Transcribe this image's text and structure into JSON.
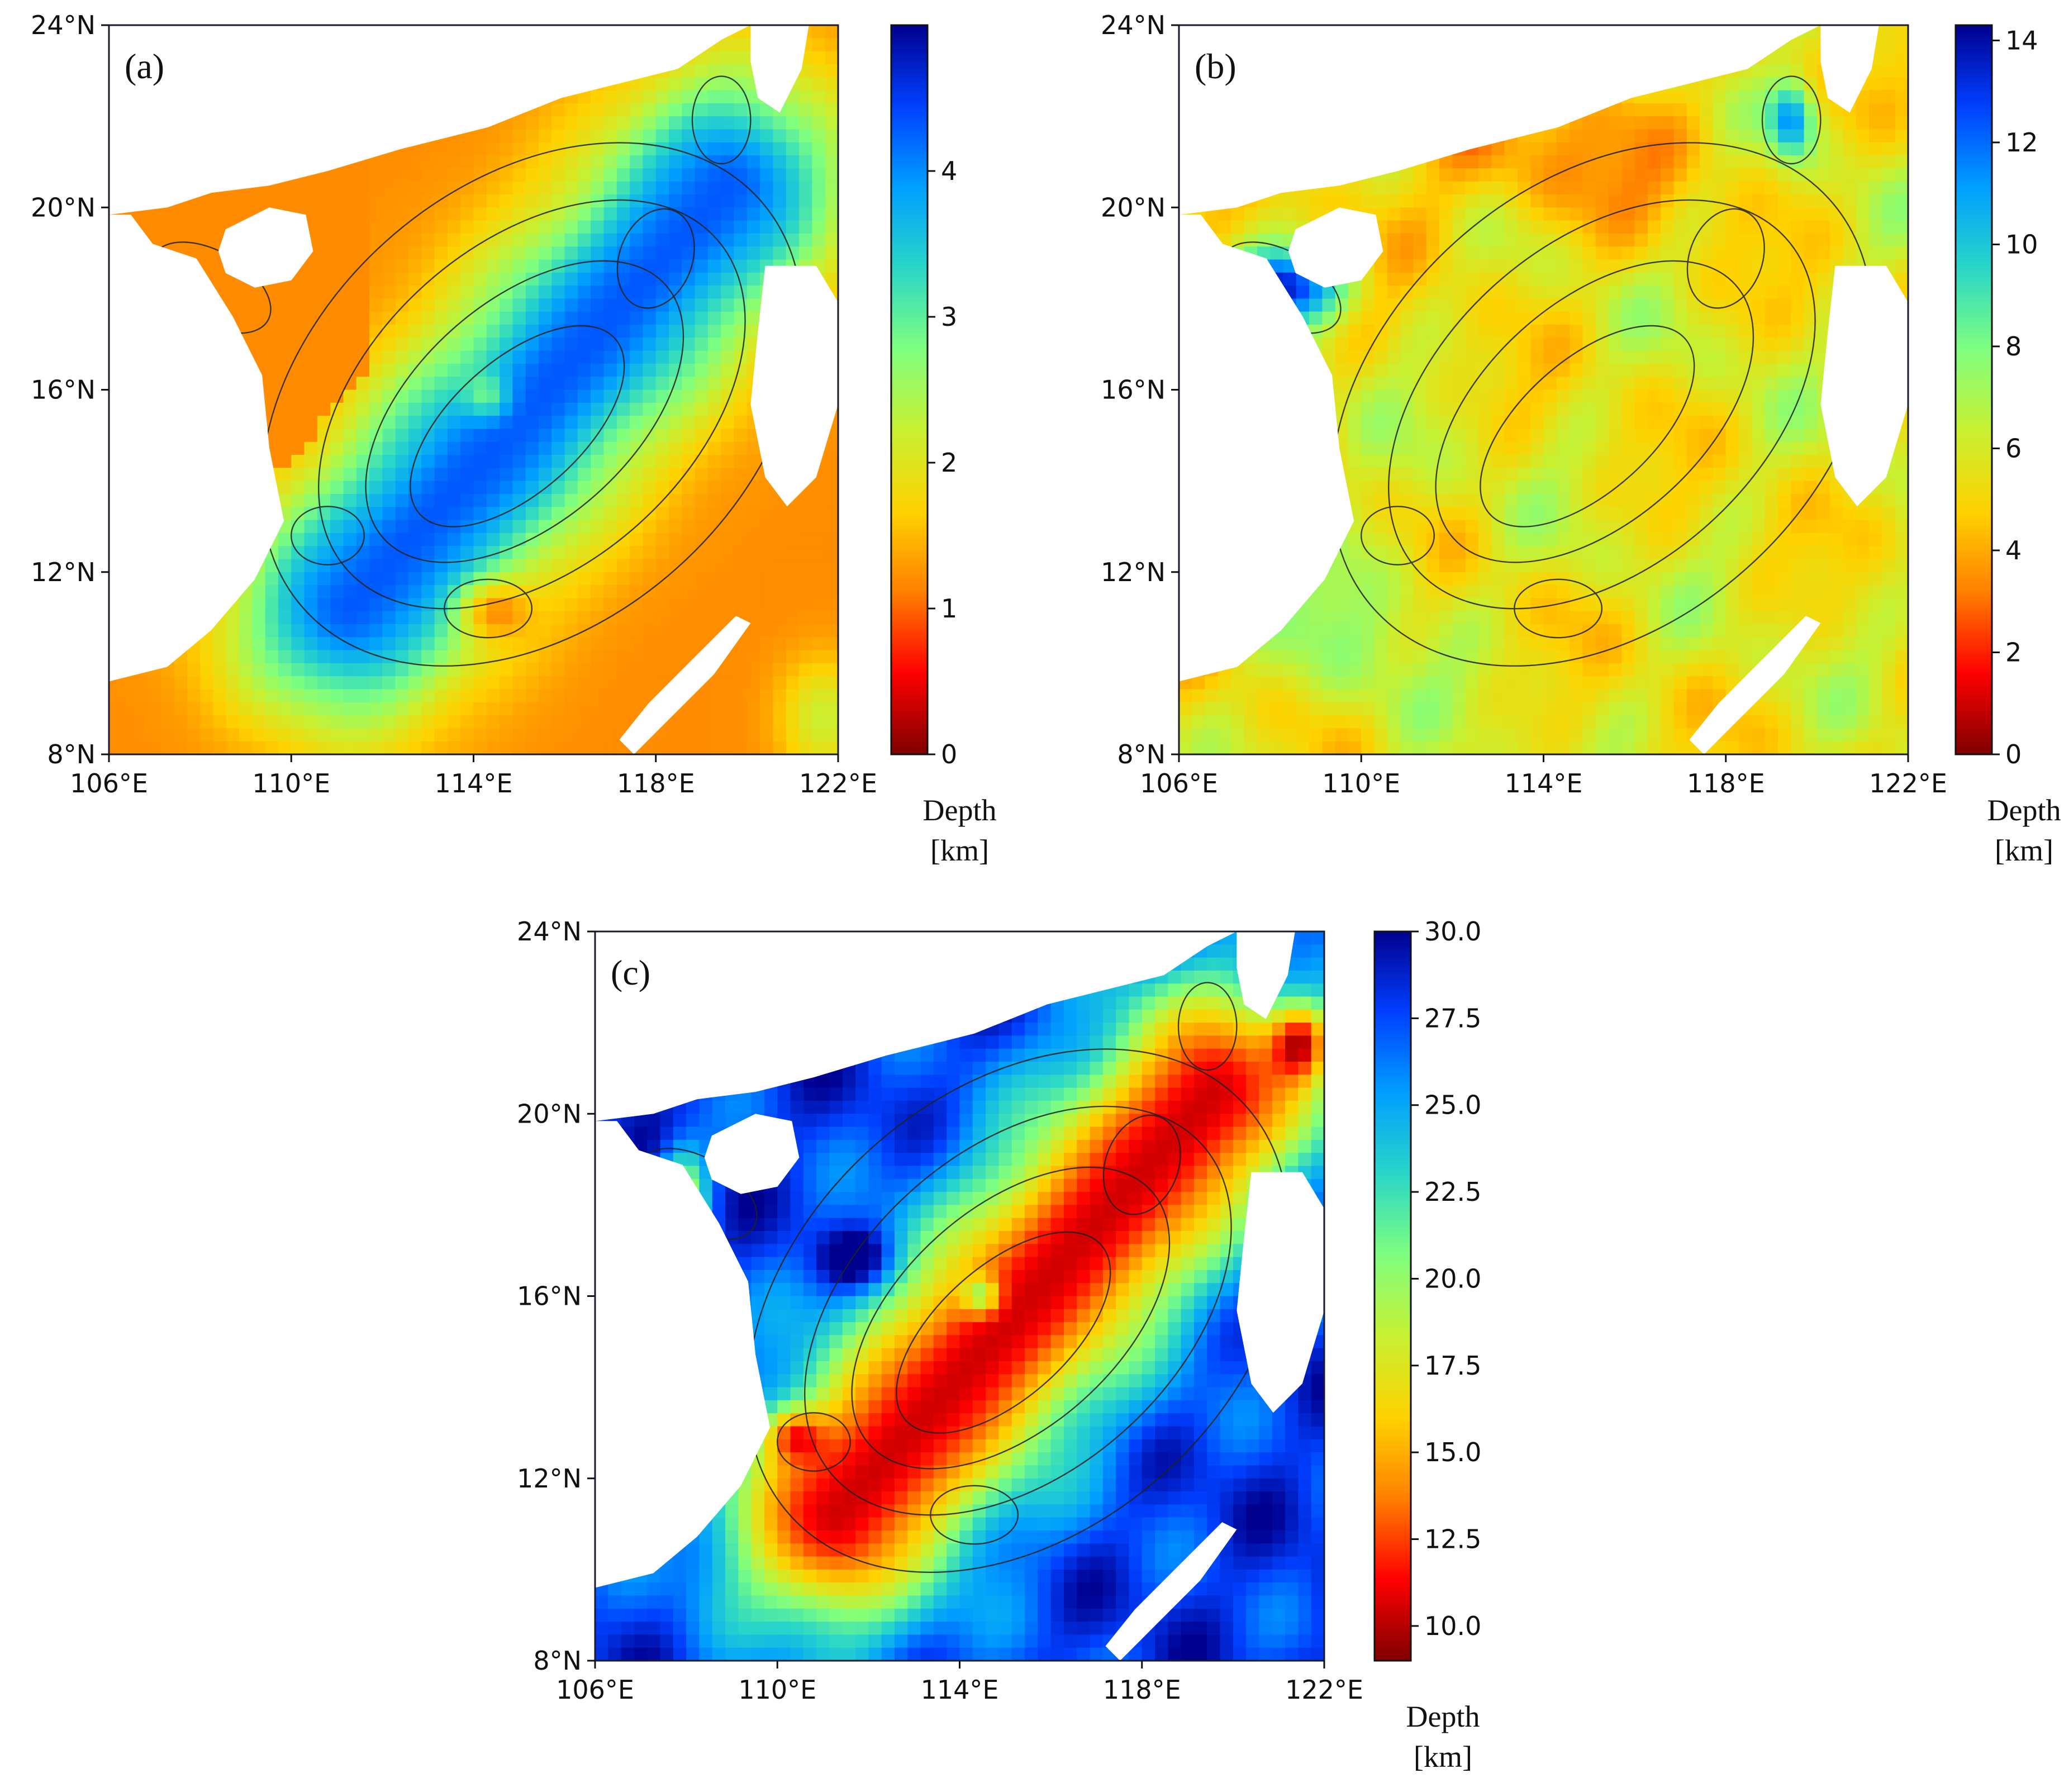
{
  "figure": {
    "background": "#ffffff",
    "land_color": "#ffffff",
    "contour_color": "#222222",
    "colormap": [
      "#7f0000",
      "#ff0000",
      "#ff7f00",
      "#ffd200",
      "#c8f032",
      "#7fff7f",
      "#2ad6c8",
      "#009fff",
      "#0040ff",
      "#00008f"
    ],
    "colormap_note": "jet colormap, low depth = dark red, high depth = dark blue"
  },
  "panels": [
    {
      "id": "a",
      "label": "(a)",
      "lon_ticks": [
        "106°E",
        "110°E",
        "114°E",
        "118°E",
        "122°E"
      ],
      "lat_ticks": [
        "24°N",
        "20°N",
        "16°N",
        "12°N",
        "8°N"
      ],
      "lon_range": [
        106,
        122
      ],
      "lat_range": [
        8,
        24
      ],
      "colorbar": {
        "min": 0,
        "max": 5.0,
        "ticks": [
          "0",
          "1",
          "2",
          "3",
          "4"
        ],
        "tick_values": [
          0,
          1,
          2,
          3,
          4
        ]
      },
      "unit_line1": "Depth",
      "unit_line2": "[km]",
      "pattern": "deep-basin"
    },
    {
      "id": "b",
      "label": "(b)",
      "lon_ticks": [
        "106°E",
        "110°E",
        "114°E",
        "118°E",
        "122°E"
      ],
      "lat_ticks": [
        "24°N",
        "20°N",
        "16°N",
        "12°N",
        "8°N"
      ],
      "lon_range": [
        106,
        122
      ],
      "lat_range": [
        8,
        24
      ],
      "colorbar": {
        "min": 0,
        "max": 14.3,
        "ticks": [
          "0",
          "2",
          "4",
          "6",
          "8",
          "10",
          "12",
          "14"
        ],
        "tick_values": [
          0,
          2,
          4,
          6,
          8,
          10,
          12,
          14
        ]
      },
      "unit_line1": "Depth",
      "unit_line2": "[km]",
      "pattern": "mid-depth"
    },
    {
      "id": "c",
      "label": "(c)",
      "lon_ticks": [
        "106°E",
        "110°E",
        "114°E",
        "118°E",
        "122°E"
      ],
      "lat_ticks": [
        "24°N",
        "20°N",
        "16°N",
        "12°N",
        "8°N"
      ],
      "lon_range": [
        106,
        122
      ],
      "lat_range": [
        8,
        24
      ],
      "colorbar": {
        "min": 9.0,
        "max": 30.0,
        "ticks": [
          "10.0",
          "12.5",
          "15.0",
          "17.5",
          "20.0",
          "22.5",
          "25.0",
          "27.5",
          "30.0"
        ],
        "tick_values": [
          10,
          12.5,
          15,
          17.5,
          20,
          22.5,
          25,
          27.5,
          30
        ]
      },
      "unit_line1": "Depth",
      "unit_line2": "[km]",
      "pattern": "inverted-basin"
    }
  ]
}
